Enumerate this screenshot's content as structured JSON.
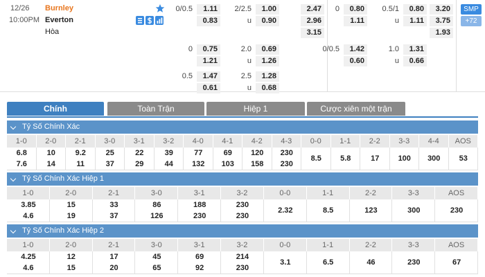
{
  "match": {
    "date": "12/26",
    "time": "10:00PM",
    "home": "Burnley",
    "away": "Everton",
    "draw": "Hòa"
  },
  "labels": {
    "under": "u"
  },
  "full_time": {
    "handicap": [
      {
        "line": "0/0.5",
        "home": "1.11",
        "away": "0.83"
      },
      {
        "line": "0",
        "home": "0.75",
        "away": "1.21"
      },
      {
        "line": "0.5",
        "home": "1.47",
        "away": "0.61"
      }
    ],
    "over_under": [
      {
        "line": "2/2.5",
        "over": "1.00",
        "under": "0.90"
      },
      {
        "line": "2.0",
        "over": "0.69",
        "under": "1.26"
      },
      {
        "line": "2.5",
        "over": "1.28",
        "under": "0.68"
      }
    ],
    "1x2": [
      "2.47",
      "2.96",
      "3.15"
    ]
  },
  "first_half": {
    "handicap": [
      {
        "line": "0",
        "home": "0.80",
        "away": "1.11"
      },
      {
        "line": "0/0.5",
        "home": "1.42",
        "away": "0.60"
      }
    ],
    "over_under": [
      {
        "line": "0.5/1",
        "over": "0.80",
        "under": "1.11"
      },
      {
        "line": "1.0",
        "over": "1.31",
        "under": "0.66"
      }
    ],
    "1x2": [
      "3.20",
      "3.75",
      "1.93"
    ]
  },
  "buttons": {
    "smp": "SMP",
    "more": "+72"
  },
  "tabs": [
    "Chính",
    "Toàn Trận",
    "Hiệp 1",
    "Cược xiên một trận"
  ],
  "sections": [
    {
      "title": "Tỷ Số Chính Xác",
      "columns": [
        "1-0",
        "2-0",
        "2-1",
        "3-0",
        "3-1",
        "3-2",
        "4-0",
        "4-1",
        "4-2",
        "4-3",
        "0-0",
        "1-1",
        "2-2",
        "3-3",
        "4-4",
        "AOS"
      ],
      "values": [
        [
          "6.8",
          "7.6"
        ],
        [
          "10",
          "14"
        ],
        [
          "9.2",
          "11"
        ],
        [
          "25",
          "37"
        ],
        [
          "22",
          "29"
        ],
        [
          "39",
          "44"
        ],
        [
          "77",
          "132"
        ],
        [
          "69",
          "103"
        ],
        [
          "120",
          "158"
        ],
        [
          "230",
          "230"
        ],
        [
          "8.5"
        ],
        [
          "5.8"
        ],
        [
          "17"
        ],
        [
          "100"
        ],
        [
          "300"
        ],
        [
          "53"
        ]
      ]
    },
    {
      "title": "Tỷ Số Chính Xác Hiệp 1",
      "columns": [
        "1-0",
        "2-0",
        "2-1",
        "3-0",
        "3-1",
        "3-2",
        "0-0",
        "1-1",
        "2-2",
        "3-3",
        "AOS"
      ],
      "values": [
        [
          "3.85",
          "4.6"
        ],
        [
          "15",
          "19"
        ],
        [
          "33",
          "37"
        ],
        [
          "86",
          "126"
        ],
        [
          "188",
          "230"
        ],
        [
          "230",
          "230"
        ],
        [
          "2.32"
        ],
        [
          "8.5"
        ],
        [
          "123"
        ],
        [
          "300"
        ],
        [
          "230"
        ]
      ]
    },
    {
      "title": "Tỷ Số Chính Xác Hiệp 2",
      "columns": [
        "1-0",
        "2-0",
        "2-1",
        "3-0",
        "3-1",
        "3-2",
        "0-0",
        "1-1",
        "2-2",
        "3-3",
        "AOS"
      ],
      "values": [
        [
          "4.25",
          "4.6"
        ],
        [
          "12",
          "15"
        ],
        [
          "17",
          "20"
        ],
        [
          "45",
          "65"
        ],
        [
          "69",
          "92"
        ],
        [
          "214",
          "230"
        ],
        [
          "3.1"
        ],
        [
          "6.5"
        ],
        [
          "46"
        ],
        [
          "230"
        ],
        [
          "67"
        ]
      ]
    }
  ]
}
